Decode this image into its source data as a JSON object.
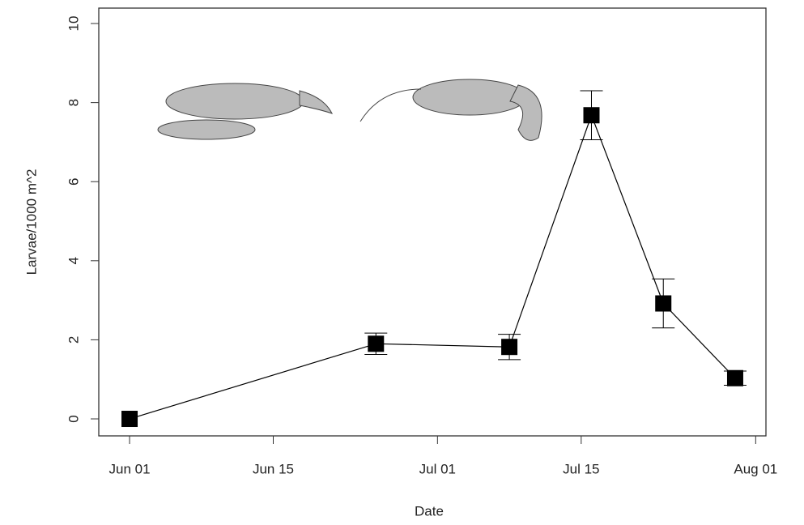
{
  "chart_data": {
    "type": "line",
    "x_label": "Date",
    "y_label": "Larvae/1000 m^2",
    "x": [
      "06-01",
      "06-25",
      "07-08",
      "07-16",
      "07-23",
      "07-30"
    ],
    "series": [
      {
        "color": "#000000",
        "values": [
          0,
          1.9,
          1.82,
          7.68,
          2.92,
          1.03
        ],
        "errors": [
          0,
          0.27,
          0.32,
          0.62,
          0.62,
          0.18
        ]
      }
    ],
    "xlim": [
      "05-29",
      "08-02"
    ],
    "xticks": [
      {
        "value": "06-01",
        "label": "Jun 01"
      },
      {
        "value": "06-15",
        "label": "Jun 15"
      },
      {
        "value": "07-01",
        "label": "Jul 01"
      },
      {
        "value": "07-15",
        "label": "Jul 15"
      },
      {
        "value": "08-01",
        "label": "Aug 01"
      }
    ],
    "ylim": [
      -0.43,
      10.39
    ],
    "yticks": [
      0,
      2,
      4,
      6,
      8,
      10
    ]
  }
}
